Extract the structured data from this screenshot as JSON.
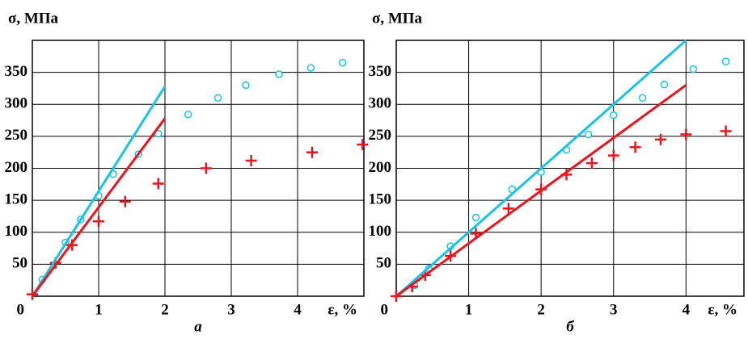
{
  "chart_data": [
    {
      "type": "scatter",
      "title": "а",
      "ylabel": "σ, МПа",
      "xlabel": "ε, %",
      "xlim": [
        0,
        5
      ],
      "ylim": [
        0,
        400
      ],
      "xticks": [
        0,
        1,
        2,
        3,
        4
      ],
      "yticks": [
        0,
        50,
        100,
        150,
        200,
        250,
        300,
        350
      ],
      "grid": true,
      "series": [
        {
          "color": "#19c3e6",
          "marker": "o",
          "x": [
            0.15,
            0.5,
            0.73,
            1.0,
            1.22,
            1.6,
            1.9,
            2.35,
            2.8,
            3.22,
            3.72,
            4.2,
            4.68
          ],
          "values": [
            26,
            84,
            120,
            157,
            191,
            222,
            254,
            284,
            310,
            330,
            347,
            357,
            365
          ]
        },
        {
          "color": "#e8141e",
          "marker": "+",
          "x": [
            0,
            0.35,
            0.6,
            1.0,
            1.4,
            1.9,
            2.62,
            3.3,
            4.22,
            4.98
          ],
          "values": [
            3,
            52,
            80,
            117,
            148,
            176,
            200,
            212,
            225,
            237
          ]
        },
        {
          "color": "#19c3e6",
          "marker": "line",
          "x": [
            0,
            2.0
          ],
          "values": [
            0,
            328
          ]
        },
        {
          "color": "#e8141e",
          "marker": "line",
          "x": [
            0,
            2.0
          ],
          "values": [
            0,
            278
          ]
        }
      ]
    },
    {
      "type": "scatter",
      "title": "б",
      "ylabel": "σ, МПа",
      "xlabel": "ε, %",
      "xlim": [
        0,
        4.8
      ],
      "ylim": [
        0,
        400
      ],
      "xticks": [
        0,
        1,
        2,
        3,
        4
      ],
      "yticks": [
        0,
        50,
        100,
        150,
        200,
        250,
        300,
        350
      ],
      "grid": true,
      "series": [
        {
          "color": "#19c3e6",
          "marker": "o",
          "x": [
            0.25,
            0.45,
            0.75,
            1.1,
            1.6,
            2.0,
            2.35,
            2.65,
            3.0,
            3.4,
            3.7,
            4.1,
            4.55
          ],
          "values": [
            17,
            43,
            78,
            123,
            167,
            194,
            229,
            253,
            283,
            310,
            331,
            355,
            367
          ]
        },
        {
          "color": "#e8141e",
          "marker": "+",
          "x": [
            0,
            0.22,
            0.4,
            0.75,
            1.1,
            1.55,
            2.0,
            2.35,
            2.7,
            3.0,
            3.3,
            3.65,
            4.0,
            4.55
          ],
          "values": [
            0,
            15,
            33,
            63,
            98,
            137,
            167,
            190,
            208,
            220,
            233,
            245,
            253,
            258
          ]
        },
        {
          "color": "#19c3e6",
          "marker": "line",
          "x": [
            0,
            4.0
          ],
          "values": [
            0,
            400
          ]
        },
        {
          "color": "#e8141e",
          "marker": "line",
          "x": [
            0,
            4.0
          ],
          "values": [
            0,
            330
          ]
        }
      ]
    }
  ]
}
